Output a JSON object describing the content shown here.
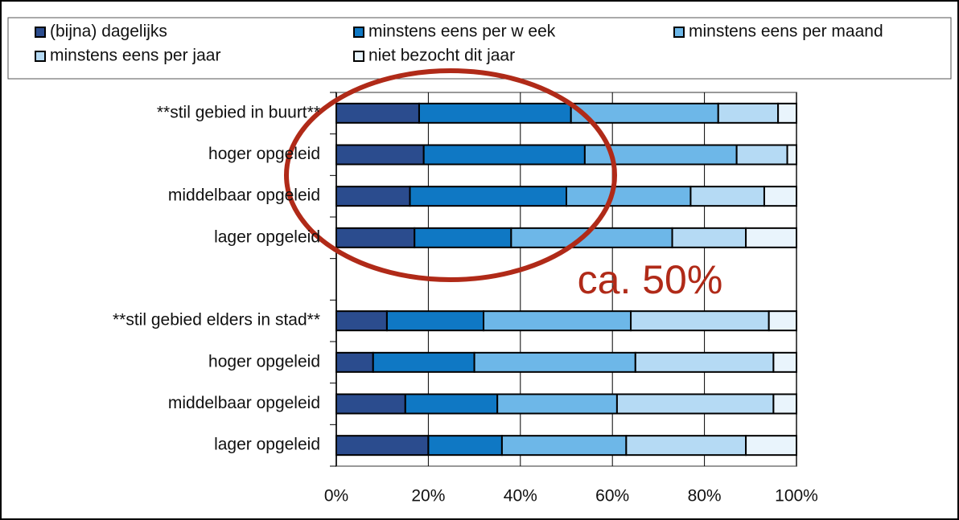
{
  "chart_data": {
    "type": "stacked_barh",
    "categories": [
      "**stil gebied in buurt**",
      "hoger opgeleid",
      "middelbaar opgeleid",
      "lager opgeleid",
      null,
      "**stil gebied elders in stad**",
      "hoger opgeleid",
      "middelbaar opgeleid",
      "lager opgeleid"
    ],
    "series": [
      {
        "name": "(bijna) dagelijks",
        "color": "#2b4c8e",
        "values": [
          18,
          19,
          16,
          17,
          null,
          11,
          8,
          15,
          20
        ]
      },
      {
        "name": "minstens eens per w eek",
        "color": "#0f78c4",
        "values": [
          33,
          35,
          34,
          21,
          null,
          21,
          22,
          20,
          16
        ]
      },
      {
        "name": "minstens eens per maand",
        "color": "#6db7e8",
        "values": [
          32,
          33,
          27,
          35,
          null,
          32,
          35,
          26,
          27
        ]
      },
      {
        "name": "minstens eens per jaar",
        "color": "#b5daf4",
        "values": [
          13,
          11,
          16,
          16,
          null,
          30,
          30,
          34,
          26
        ]
      },
      {
        "name": "niet bezocht dit jaar",
        "color": "#e9f4fc",
        "values": [
          4,
          2,
          7,
          11,
          null,
          6,
          5,
          5,
          11
        ]
      }
    ],
    "xlim": [
      0,
      100
    ],
    "xticks": [
      {
        "value": 0,
        "label": "0%"
      },
      {
        "value": 20,
        "label": "20%"
      },
      {
        "value": 40,
        "label": "40%"
      },
      {
        "value": 60,
        "label": "60%"
      },
      {
        "value": 80,
        "label": "80%"
      },
      {
        "value": 100,
        "label": "100%"
      }
    ],
    "grid": true,
    "annotation": "ca. 50%"
  }
}
